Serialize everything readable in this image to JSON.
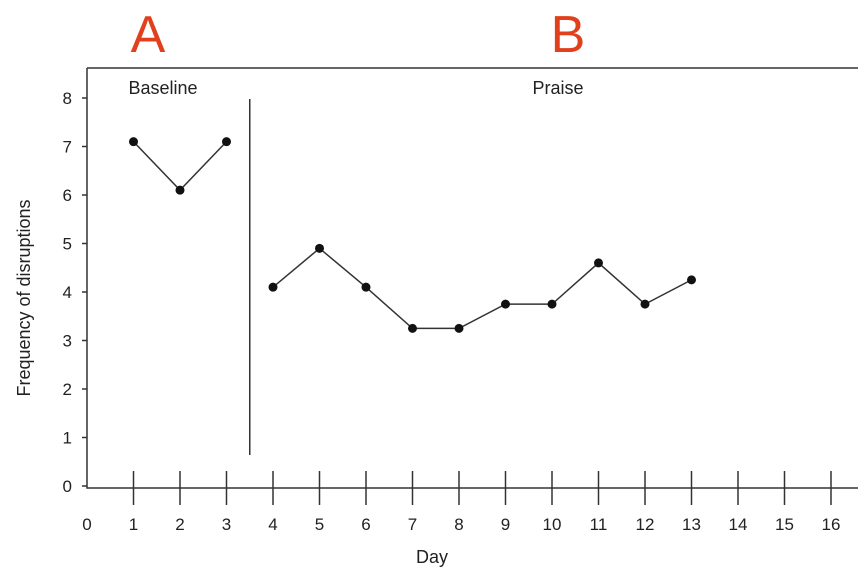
{
  "phase_letters": [
    "A",
    "B"
  ],
  "chart_data": {
    "type": "line",
    "title": "",
    "xlabel": "Day",
    "ylabel": "Frequency of disruptions",
    "xlim": [
      0,
      16
    ],
    "ylim": [
      0,
      8
    ],
    "x_ticks": [
      0,
      1,
      2,
      3,
      4,
      5,
      6,
      7,
      8,
      9,
      10,
      11,
      12,
      13,
      14,
      15,
      16
    ],
    "y_ticks": [
      0,
      1,
      2,
      3,
      4,
      5,
      6,
      7,
      8
    ],
    "grid": false,
    "phase_change_after_day": 3.5,
    "phases": [
      {
        "letter": "A",
        "label": "Baseline",
        "x": [
          1,
          2,
          3
        ],
        "y": [
          7.1,
          6.1,
          7.1
        ]
      },
      {
        "letter": "B",
        "label": "Praise",
        "x": [
          4,
          5,
          6,
          7,
          8,
          9,
          10,
          11,
          12,
          13
        ],
        "y": [
          4.1,
          4.9,
          4.1,
          3.25,
          3.25,
          3.75,
          3.75,
          4.6,
          3.75,
          4.25
        ]
      }
    ],
    "colors": {
      "line": "#333333",
      "marker": "#111111",
      "axis": "#333333",
      "phase_letter": "#e2401c"
    }
  }
}
